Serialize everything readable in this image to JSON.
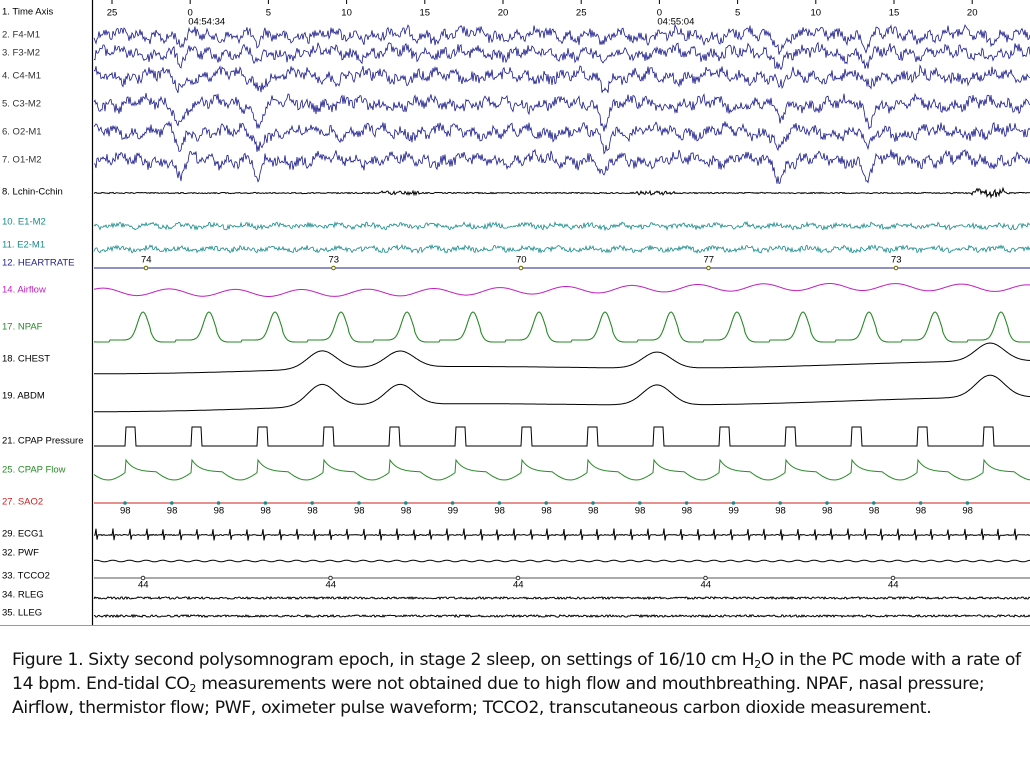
{
  "time_axis": {
    "ticks": [
      {
        "label": "25"
      },
      {
        "label": "0",
        "time": "04:54:34"
      },
      {
        "label": "5"
      },
      {
        "label": "10"
      },
      {
        "label": "15"
      },
      {
        "label": "20"
      },
      {
        "label": "25"
      },
      {
        "label": "0",
        "time": "04:55:04"
      },
      {
        "label": "5"
      },
      {
        "label": "10"
      },
      {
        "label": "15"
      },
      {
        "label": "20"
      }
    ]
  },
  "channels": [
    {
      "label": "1. Time Axis"
    },
    {
      "label": "2. F4-M1"
    },
    {
      "label": "3. F3-M2"
    },
    {
      "label": "4. C4-M1"
    },
    {
      "label": "5. C3-M2"
    },
    {
      "label": "6. O2-M1"
    },
    {
      "label": "7. O1-M2"
    },
    {
      "label": "8. Lchin-Cchin"
    },
    {
      "label": "10. E1-M2"
    },
    {
      "label": "11. E2-M1"
    },
    {
      "label": "12. HEARTRATE"
    },
    {
      "label": "14. Airflow"
    },
    {
      "label": "17. NPAF"
    },
    {
      "label": "18. CHEST"
    },
    {
      "label": "19. ABDM"
    },
    {
      "label": "21. CPAP Pressure"
    },
    {
      "label": "25. CPAP Flow"
    },
    {
      "label": "27. SAO2"
    },
    {
      "label": "29. ECG1"
    },
    {
      "label": "32. PWF"
    },
    {
      "label": "33. TCCO2"
    },
    {
      "label": "34. RLEG"
    },
    {
      "label": "35. LLEG"
    }
  ],
  "heartrate_values": [
    74,
    73,
    70,
    77,
    73
  ],
  "sao2_values": [
    98,
    98,
    98,
    98,
    98,
    98,
    98,
    99,
    98,
    98,
    98,
    98,
    98,
    99,
    98,
    98,
    98,
    98,
    98
  ],
  "tcco2_values": [
    44,
    44,
    44,
    44,
    44
  ],
  "caption": {
    "parts": [
      "Figure 1. Sixty second polysomnogram epoch, in stage 2 sleep, on settings of 16/10 cm H",
      "2",
      "O in the PC mode with a rate of 14 bpm. End-tidal CO",
      "2",
      " measurements were not obtained due to high flow and mouthbreathing. NPAF, nasal pressure; Airflow, thermistor flow; PWF, oximeter pulse waveform; TCCO2, transcutaneous carbon dioxide measurement."
    ]
  }
}
